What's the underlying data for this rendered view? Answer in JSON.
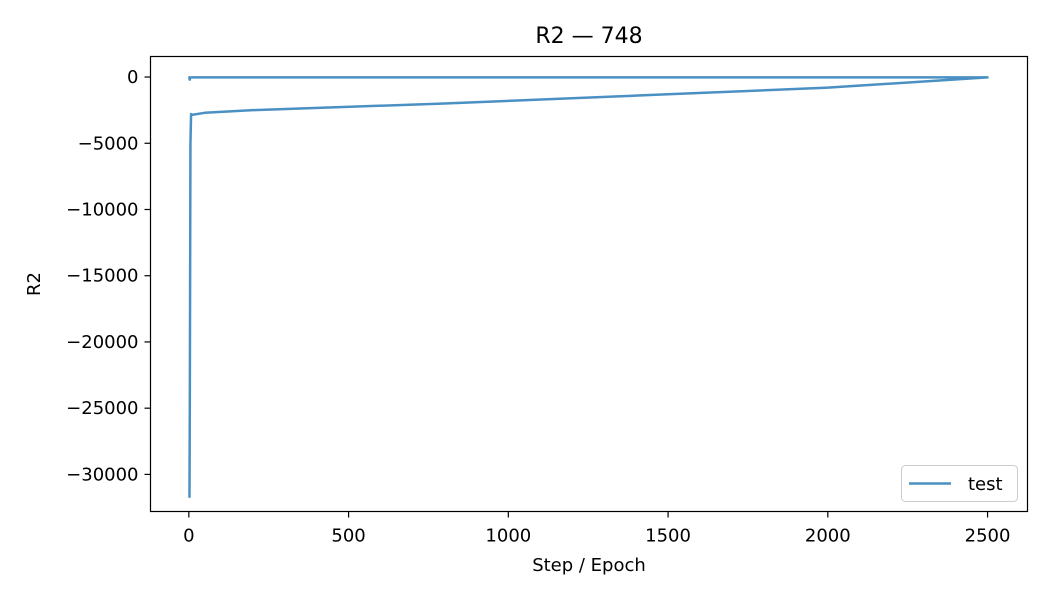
{
  "chart_data": {
    "type": "line",
    "title": "R2 — 748",
    "xlabel": "Step / Epoch",
    "ylabel": "R2",
    "xlim": [
      -120,
      2625
    ],
    "ylim": [
      -32800,
      1550
    ],
    "xticks": [
      0,
      500,
      1000,
      1500,
      2000,
      2500
    ],
    "xtick_labels": [
      "0",
      "500",
      "1000",
      "1500",
      "2000",
      "2500"
    ],
    "yticks": [
      0,
      -5000,
      -10000,
      -15000,
      -20000,
      -25000,
      -30000
    ],
    "ytick_labels": [
      "0",
      "−5000",
      "−10000",
      "−15000",
      "−20000",
      "−25000",
      "−30000"
    ],
    "grid": false,
    "legend_position": "bottom-right",
    "colors": {
      "series": "#4a90c2"
    },
    "series": [
      {
        "name": "test",
        "x": [
          2,
          3,
          4,
          5,
          7,
          12,
          50,
          200,
          800,
          1500,
          2000,
          2500,
          2000,
          1500,
          1000,
          500,
          100,
          10,
          4,
          3,
          3,
          2,
          2,
          2,
          2,
          2
        ],
        "y": [
          -31700,
          -25000,
          -15000,
          -5000,
          -2800,
          -2850,
          -2700,
          -2500,
          -2000,
          -1300,
          -800,
          -30,
          -30,
          -30,
          -30,
          -30,
          -30,
          -30,
          -40,
          -120,
          -200,
          -150,
          -100,
          -60,
          -40,
          -20
        ]
      }
    ]
  }
}
